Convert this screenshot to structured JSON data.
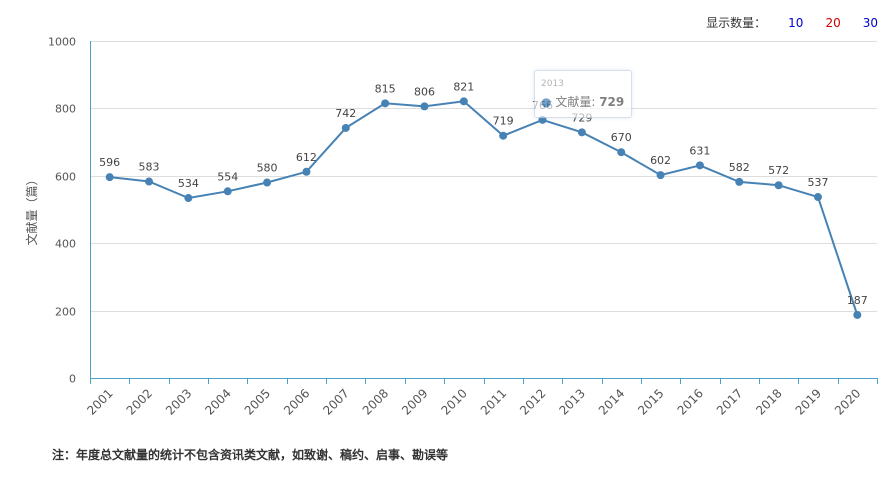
{
  "display_count": {
    "label": "显示数量：",
    "options": [
      {
        "text": "10",
        "color": "#0000cc"
      },
      {
        "text": "20",
        "color": "#cc0000"
      },
      {
        "text": "30",
        "color": "#0000cc"
      }
    ]
  },
  "tooltip": {
    "year": "2013",
    "series_name": "文献量:",
    "value": "729"
  },
  "note": "注：年度总文献量的统计不包含资讯类文献，如致谢、稿约、启事、勘误等",
  "colors": {
    "line": "#4682b4",
    "axis": "#4aa3c4",
    "grid": "#dddddd",
    "text": "#555555"
  },
  "chart_data": {
    "type": "line",
    "title": "",
    "xlabel": "",
    "ylabel": "文献量（篇）",
    "ylim": [
      0,
      1000
    ],
    "yticks": [
      0,
      200,
      400,
      600,
      800,
      1000
    ],
    "grid": true,
    "categories": [
      "2001",
      "2002",
      "2003",
      "2004",
      "2005",
      "2006",
      "2007",
      "2008",
      "2009",
      "2010",
      "2011",
      "2012",
      "2013",
      "2014",
      "2015",
      "2016",
      "2017",
      "2018",
      "2019",
      "2020"
    ],
    "series": [
      {
        "values": [
          596,
          583,
          534,
          554,
          580,
          612,
          742,
          815,
          806,
          821,
          719,
          766,
          729,
          670,
          602,
          631,
          582,
          572,
          537,
          187
        ]
      }
    ]
  }
}
